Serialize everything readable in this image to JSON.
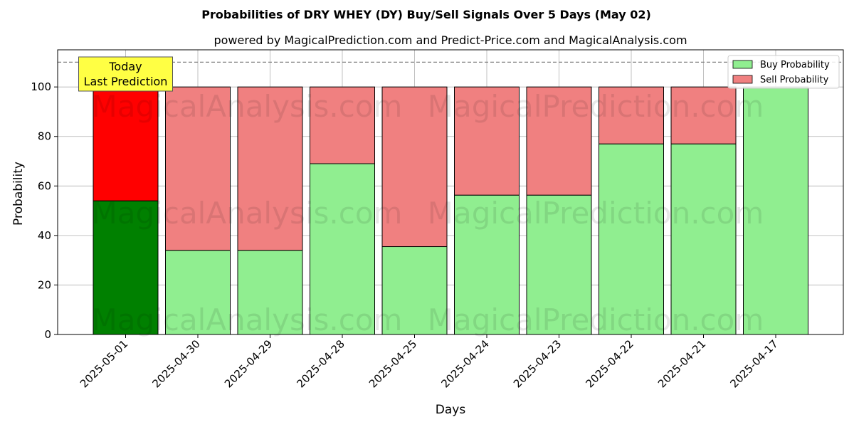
{
  "chart_data": {
    "type": "bar",
    "stacked": true,
    "title": "Probabilities of DRY WHEY (DY) Buy/Sell Signals Over 5 Days (May 02)",
    "subtitle": "powered by MagicalPrediction.com and Predict-Price.com and MagicalAnalysis.com",
    "xlabel": "Days",
    "ylabel": "Probability",
    "ylim": [
      0,
      115
    ],
    "yticks": [
      0,
      20,
      40,
      60,
      80,
      100
    ],
    "reference_line": 110,
    "grid": true,
    "legend_position": "top-right",
    "categories": [
      "2025-05-01",
      "2025-04-30",
      "2025-04-29",
      "2025-04-28",
      "2025-04-25",
      "2025-04-24",
      "2025-04-23",
      "2025-04-22",
      "2025-04-21",
      "2025-04-17"
    ],
    "series": [
      {
        "name": "Buy Probability",
        "values": [
          54,
          34,
          34,
          69,
          35.5,
          56.3,
          56.3,
          77,
          77,
          100
        ],
        "color": "#90ee90",
        "highlight_color": "#008000"
      },
      {
        "name": "Sell Probability",
        "values": [
          46,
          66,
          66,
          31,
          64.5,
          43.7,
          43.7,
          23,
          23,
          0
        ],
        "color": "#f08080",
        "highlight_color": "#ff0000"
      }
    ],
    "highlight_index": 0,
    "annotation": {
      "lines": [
        "Today",
        "Last Prediction"
      ],
      "background": "#ffff44"
    },
    "watermarks": [
      "MagicalAnalysis.com",
      "MagicalPrediction.com"
    ]
  }
}
